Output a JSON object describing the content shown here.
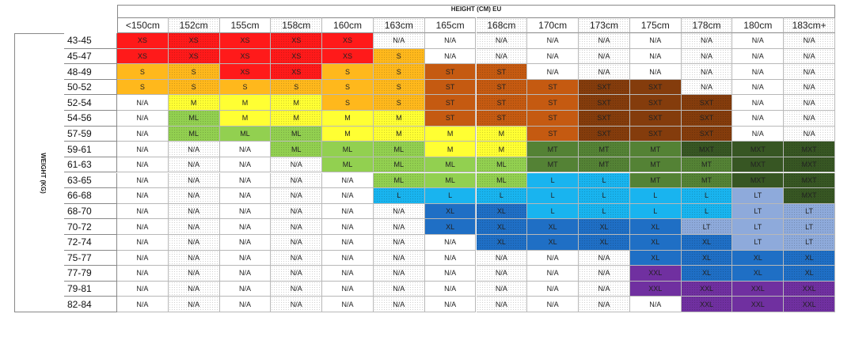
{
  "header": {
    "title": "HEIGHT (CM) EU",
    "y_label": "WEIGHT (KG)"
  },
  "colors": {
    "XS": "#ff1a1a",
    "S": "#ffb81c",
    "M": "#ffff33",
    "ML": "#92d050",
    "ST": "#c55a11",
    "SXT": "#843c0c",
    "MT": "#548235",
    "MXT": "#375623",
    "L": "#19b4ef",
    "XL": "#1f6fc5",
    "LT": "#8eaadb",
    "XXL": "#7030a0",
    "N/A": "#ffffff"
  },
  "table": {
    "columns": [
      "<150cm",
      "152cm",
      "155cm",
      "158cm",
      "160cm",
      "163cm",
      "165cm",
      "168cm",
      "170cm",
      "173cm",
      "175cm",
      "178cm",
      "180cm",
      "183cm+"
    ],
    "rows": [
      {
        "label": "43-45",
        "cells": [
          "XS",
          "XS",
          "XS",
          "XS",
          "XS",
          "N/A",
          "N/A",
          "N/A",
          "N/A",
          "N/A",
          "N/A",
          "N/A",
          "N/A",
          "N/A"
        ]
      },
      {
        "label": "45-47",
        "cells": [
          "XS",
          "XS",
          "XS",
          "XS",
          "XS",
          "S",
          "N/A",
          "N/A",
          "N/A",
          "N/A",
          "N/A",
          "N/A",
          "N/A",
          "N/A"
        ]
      },
      {
        "label": "48-49",
        "cells": [
          "S",
          "S",
          "XS",
          "XS",
          "S",
          "S",
          "ST",
          "ST",
          "N/A",
          "N/A",
          "N/A",
          "N/A",
          "N/A",
          "N/A"
        ]
      },
      {
        "label": "50-52",
        "cells": [
          "S",
          "S",
          "S",
          "S",
          "S",
          "S",
          "ST",
          "ST",
          "ST",
          "SXT",
          "SXT",
          "N/A",
          "N/A",
          "N/A"
        ]
      },
      {
        "label": "52-54",
        "cells": [
          "N/A",
          "M",
          "M",
          "M",
          "S",
          "S",
          "ST",
          "ST",
          "ST",
          "SXT",
          "SXT",
          "SXT",
          "N/A",
          "N/A"
        ]
      },
      {
        "label": "54-56",
        "cells": [
          "N/A",
          "ML",
          "M",
          "M",
          "M",
          "M",
          "ST",
          "ST",
          "ST",
          "SXT",
          "SXT",
          "SXT",
          "N/A",
          "N/A"
        ]
      },
      {
        "label": "57-59",
        "cells": [
          "N/A",
          "ML",
          "ML",
          "ML",
          "M",
          "M",
          "M",
          "M",
          "ST",
          "SXT",
          "SXT",
          "SXT",
          "N/A",
          "N/A"
        ]
      },
      {
        "label": "59-61",
        "cells": [
          "N/A",
          "N/A",
          "N/A",
          "ML",
          "ML",
          "ML",
          "M",
          "M",
          "MT",
          "MT",
          "MT",
          "MXT",
          "MXT",
          "MXT"
        ]
      },
      {
        "label": "61-63",
        "cells": [
          "N/A",
          "N/A",
          "N/A",
          "N/A",
          "ML",
          "ML",
          "ML",
          "ML",
          "MT",
          "MT",
          "MT",
          "MT",
          "MXT",
          "MXT"
        ]
      },
      {
        "label": "63-65",
        "cells": [
          "N/A",
          "N/A",
          "N/A",
          "N/A",
          "N/A",
          "ML",
          "ML",
          "ML",
          "L",
          "L",
          "MT",
          "MT",
          "MXT",
          "MXT"
        ]
      },
      {
        "label": "66-68",
        "cells": [
          "N/A",
          "N/A",
          "N/A",
          "N/A",
          "N/A",
          "L",
          "L",
          "L",
          "L",
          "L",
          "L",
          "L",
          "LT",
          "MXT"
        ]
      },
      {
        "label": "68-70",
        "cells": [
          "N/A",
          "N/A",
          "N/A",
          "N/A",
          "N/A",
          "N/A",
          "XL",
          "XL",
          "L",
          "L",
          "L",
          "L",
          "LT",
          "LT"
        ]
      },
      {
        "label": "70-72",
        "cells": [
          "N/A",
          "N/A",
          "N/A",
          "N/A",
          "N/A",
          "N/A",
          "XL",
          "XL",
          "XL",
          "XL",
          "XL",
          "LT",
          "LT",
          "LT"
        ]
      },
      {
        "label": "72-74",
        "cells": [
          "N/A",
          "N/A",
          "N/A",
          "N/A",
          "N/A",
          "N/A",
          "N/A",
          "XL",
          "XL",
          "XL",
          "XL",
          "XL",
          "LT",
          "LT"
        ]
      },
      {
        "label": "75-77",
        "cells": [
          "N/A",
          "N/A",
          "N/A",
          "N/A",
          "N/A",
          "N/A",
          "N/A",
          "N/A",
          "N/A",
          "N/A",
          "XL",
          "XL",
          "XL",
          "XL"
        ]
      },
      {
        "label": "77-79",
        "cells": [
          "N/A",
          "N/A",
          "N/A",
          "N/A",
          "N/A",
          "N/A",
          "N/A",
          "N/A",
          "N/A",
          "N/A",
          "XXL",
          "XL",
          "XL",
          "XL"
        ]
      },
      {
        "label": "79-81",
        "cells": [
          "N/A",
          "N/A",
          "N/A",
          "N/A",
          "N/A",
          "N/A",
          "N/A",
          "N/A",
          "N/A",
          "N/A",
          "XXL",
          "XXL",
          "XXL",
          "XXL"
        ]
      },
      {
        "label": "82-84",
        "cells": [
          "N/A",
          "N/A",
          "N/A",
          "N/A",
          "N/A",
          "N/A",
          "N/A",
          "N/A",
          "N/A",
          "N/A",
          "N/A",
          "XXL",
          "XXL",
          "XXL"
        ]
      }
    ]
  }
}
